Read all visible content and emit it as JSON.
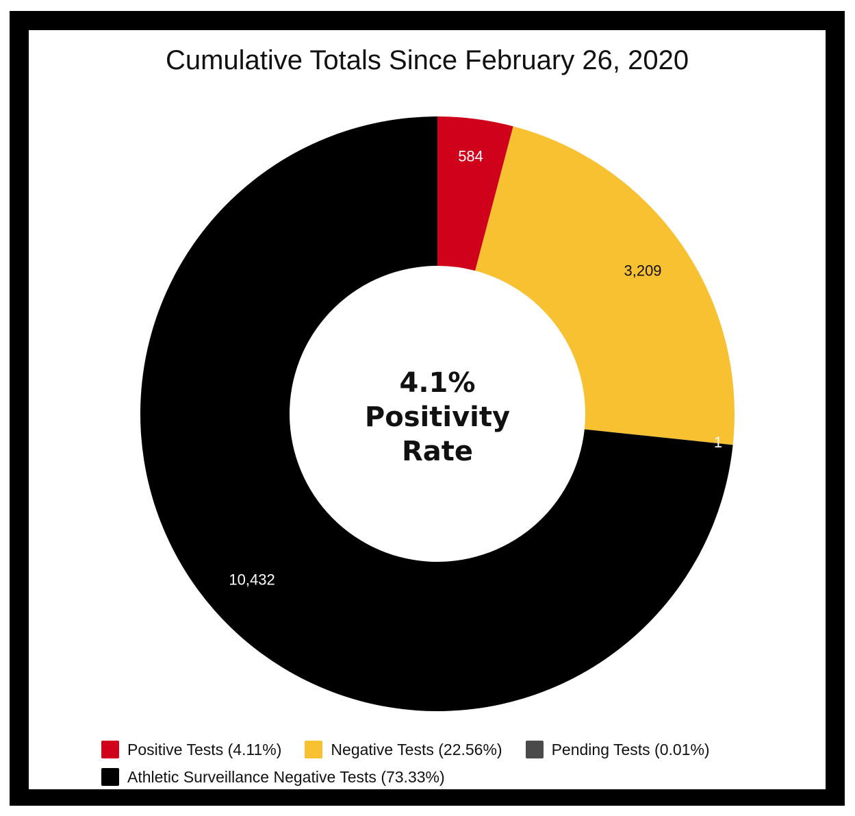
{
  "chart_data": {
    "type": "pie",
    "variant": "donut",
    "title": "Cumulative Totals Since February 26, 2020",
    "center_label": [
      "4.1%",
      "Positivity",
      "Rate"
    ],
    "slices": [
      {
        "name": "Positive Tests (4.11%)",
        "value": 584,
        "label": "584",
        "color": "#d0021b",
        "label_color": "#ffffff"
      },
      {
        "name": "Negative Tests (22.56%)",
        "value": 3209,
        "label": "3,209",
        "color": "#f8c132",
        "label_color": "#111111"
      },
      {
        "name": "Pending Tests (0.01%)",
        "value": 1,
        "label": "1",
        "color": "#4a4a4a",
        "label_color": "#ffffff"
      },
      {
        "name": "Athletic Surveillance Negative Tests (73.33%)",
        "value": 10432,
        "label": "10,432",
        "color": "#000000",
        "label_color": "#ffffff"
      }
    ],
    "legend_position": "bottom",
    "legend_rows": [
      [
        0,
        1,
        2
      ],
      [
        3
      ]
    ]
  }
}
